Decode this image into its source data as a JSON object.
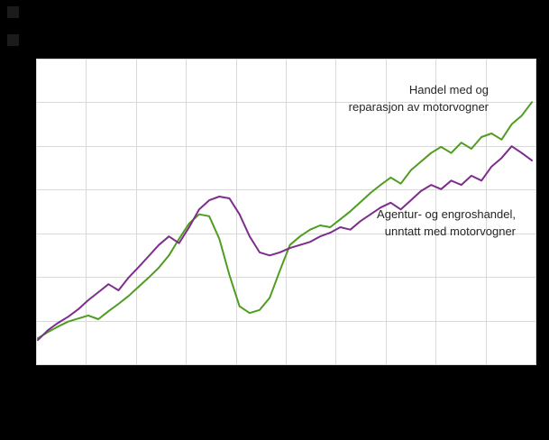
{
  "page": {
    "background_color": "#000000",
    "plot_background_color": "#ffffff",
    "gridline_color": "#d9d9d9",
    "annotation_text_color": "#262626"
  },
  "annotations": {
    "green": {
      "line1": "Handel med og",
      "line2": "reparasjon av motorvogner"
    },
    "purple": {
      "line1": "Agentur- og engroshandel,",
      "line2": "unntatt med motorvogner"
    }
  },
  "chart_data": {
    "type": "line",
    "title": "",
    "xlabel": "",
    "ylabel": "",
    "x_note": "50 equally spaced periods; axis tick labels not visible in screenshot",
    "ylim": [
      85,
      135
    ],
    "grid": {
      "on": true,
      "vertical_divisions": 10,
      "horizontal_divisions": 7
    },
    "legend_position": "inline-annotations",
    "series": [
      {
        "name": "Handel med og reparasjon av motorvogner",
        "color": "#4f9d20",
        "line_width": 2,
        "values": [
          89.4,
          90.4,
          91.3,
          92.1,
          92.6,
          93.1,
          92.5,
          93.8,
          95.0,
          96.3,
          97.8,
          99.3,
          100.9,
          102.9,
          105.6,
          108.1,
          109.6,
          109.3,
          105.6,
          99.7,
          94.6,
          93.5,
          94.0,
          96.0,
          100.4,
          104.6,
          106.0,
          107.1,
          107.8,
          107.5,
          108.8,
          110.1,
          111.6,
          113.1,
          114.4,
          115.6,
          114.6,
          116.8,
          118.2,
          119.6,
          120.6,
          119.6,
          121.3,
          120.3,
          122.2,
          122.8,
          121.8,
          124.3,
          125.7,
          127.9
        ]
      },
      {
        "name": "Agentur- og engroshandel, unntatt med motorvogner",
        "color": "#7d2e8d",
        "line_width": 2,
        "values": [
          89.1,
          90.7,
          91.9,
          92.9,
          94.1,
          95.6,
          96.9,
          98.2,
          97.2,
          99.3,
          101.0,
          102.8,
          104.6,
          106.0,
          104.9,
          107.5,
          110.4,
          111.9,
          112.5,
          112.2,
          109.6,
          106.0,
          103.4,
          102.9,
          103.4,
          104.1,
          104.6,
          105.1,
          106.0,
          106.6,
          107.5,
          107.1,
          108.5,
          109.6,
          110.7,
          111.5,
          110.4,
          111.9,
          113.4,
          114.4,
          113.7,
          115.1,
          114.4,
          115.9,
          115.1,
          117.4,
          118.8,
          120.7,
          119.6,
          118.4
        ]
      }
    ]
  }
}
